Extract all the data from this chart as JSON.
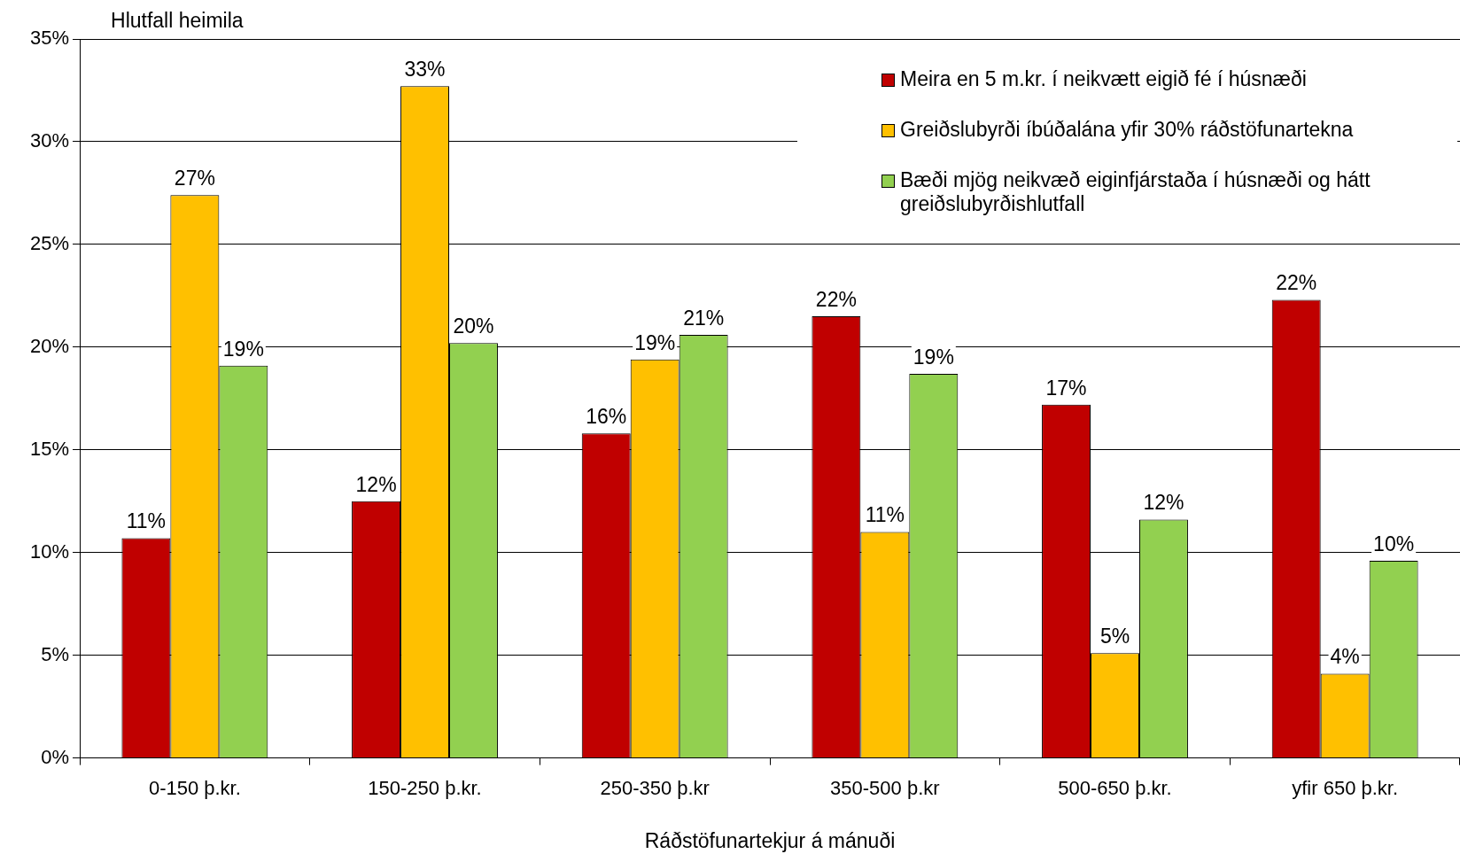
{
  "chart_data": {
    "type": "bar",
    "ylabel": "Hlutfall heimila",
    "xlabel": "Ráðstöfunartekjur á mánuði",
    "categories": [
      "0-150 þ.kr.",
      "150-250 þ.kr.",
      "250-350 þ.kr",
      "350-500 þ.kr",
      "500-650 þ.kr.",
      "yfir 650 þ.kr."
    ],
    "series": [
      {
        "name": "Meira en 5 m.kr. í neikvætt eigið fé í húsnæði",
        "color": "#c00000",
        "values": [
          10.7,
          12.5,
          15.8,
          21.5,
          17.2,
          22.3
        ],
        "value_labels": [
          "11%",
          "12%",
          "16%",
          "22%",
          "17%",
          "22%"
        ]
      },
      {
        "name": "Greiðslubyrði íbúðalána yfir 30% ráðstöfunartekna",
        "color": "#ffc000",
        "values": [
          27.4,
          32.7,
          19.4,
          11.0,
          5.1,
          4.1
        ],
        "value_labels": [
          "27%",
          "33%",
          "19%",
          "11%",
          "5%",
          "4%"
        ]
      },
      {
        "name": "Bæði mjög neikvæð eiginfjárstaða í húsnæði og hátt greiðslubyrðishlutfall",
        "color": "#92d050",
        "values": [
          19.1,
          20.2,
          20.6,
          18.7,
          11.6,
          9.6
        ],
        "value_labels": [
          "19%",
          "20%",
          "21%",
          "19%",
          "12%",
          "10%"
        ]
      }
    ],
    "ylim": [
      0,
      35
    ],
    "yticks": [
      {
        "value": 0,
        "label": "0%"
      },
      {
        "value": 5,
        "label": "5%"
      },
      {
        "value": 10,
        "label": "10%"
      },
      {
        "value": 15,
        "label": "15%"
      },
      {
        "value": 20,
        "label": "20%"
      },
      {
        "value": 25,
        "label": "25%"
      },
      {
        "value": 30,
        "label": "30%"
      },
      {
        "value": 35,
        "label": "35%"
      }
    ],
    "grid": "y",
    "legend": "top right"
  }
}
